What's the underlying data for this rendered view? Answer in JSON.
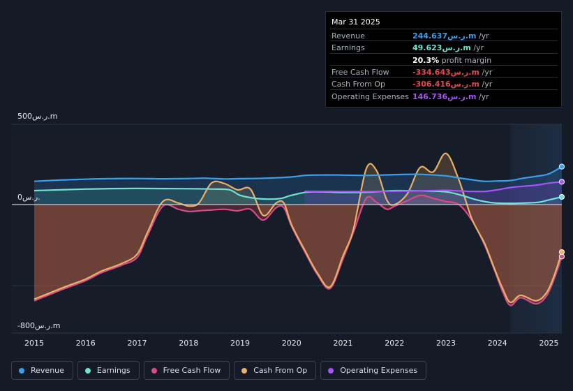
{
  "tooltip": {
    "date": "Mar 31 2025",
    "rows": [
      {
        "label": "Revenue",
        "value": "244.637ر.س.m",
        "unit": " /yr",
        "color": "#3b9ee8"
      },
      {
        "label": "Earnings",
        "value": "49.623ر.س.m",
        "unit": " /yr",
        "color": "#6fe3d0"
      },
      {
        "label": "",
        "value": "20.3%",
        "unit": " profit margin",
        "color": "#ffffff"
      },
      {
        "label": "Free Cash Flow",
        "value": "-334.643ر.س.m",
        "unit": " /yr",
        "color": "#e5484d"
      },
      {
        "label": "Cash From Op",
        "value": "-306.416ر.س.m",
        "unit": " /yr",
        "color": "#e5484d"
      },
      {
        "label": "Operating Expenses",
        "value": "146.736ر.س.m",
        "unit": " /yr",
        "color": "#a855f7"
      }
    ]
  },
  "axis": {
    "y_top": "500ر.س.m",
    "y_zero": "0ر.س.",
    "y_bottom": "-800ر.س.m"
  },
  "x_ticks": [
    "2015",
    "2016",
    "2017",
    "2018",
    "2019",
    "2020",
    "2021",
    "2022",
    "2023",
    "2024",
    "2025"
  ],
  "legend": [
    {
      "label": "Revenue",
      "color": "#3b9ee8"
    },
    {
      "label": "Earnings",
      "color": "#6fe3d0"
    },
    {
      "label": "Free Cash Flow",
      "color": "#d94a86"
    },
    {
      "label": "Cash From Op",
      "color": "#e8b06a"
    },
    {
      "label": "Operating Expenses",
      "color": "#a855f7"
    }
  ],
  "chart_data": {
    "type": "line",
    "ylim": [
      -800,
      500
    ],
    "xlim": [
      2014.6,
      2025.25
    ],
    "grid": true,
    "legend_position": "bottom",
    "series": [
      {
        "name": "Revenue",
        "color": "#3b9ee8",
        "x": [
          2015,
          2015.5,
          2016,
          2016.5,
          2017,
          2017.5,
          2018,
          2018.3,
          2018.7,
          2019,
          2019.5,
          2020,
          2020.3,
          2020.8,
          2021,
          2021.5,
          2022,
          2022.5,
          2023,
          2023.25,
          2023.5,
          2023.75,
          2024,
          2024.25,
          2024.5,
          2024.75,
          2025,
          2025.25
        ],
        "values": [
          150,
          158,
          164,
          167,
          168,
          166,
          168,
          170,
          165,
          167,
          170,
          178,
          189,
          191,
          190,
          188,
          193,
          195,
          185,
          172,
          160,
          150,
          152,
          155,
          170,
          182,
          198,
          244.637
        ]
      },
      {
        "name": "Earnings",
        "color": "#6fe3d0",
        "x": [
          2015,
          2015.5,
          2016,
          2016.5,
          2017,
          2017.5,
          2018,
          2018.5,
          2018.8,
          2019,
          2019.3,
          2019.6,
          2019.8,
          2020,
          2020.3,
          2020.6,
          2021,
          2021.5,
          2022,
          2022.5,
          2023,
          2023.3,
          2023.6,
          2023.9,
          2024.2,
          2024.5,
          2024.8,
          2025,
          2025.25
        ],
        "values": [
          90,
          95,
          100,
          103,
          104,
          103,
          102,
          100,
          95,
          60,
          40,
          35,
          40,
          60,
          80,
          82,
          78,
          80,
          90,
          88,
          82,
          60,
          30,
          12,
          8,
          10,
          15,
          30,
          49.623
        ]
      },
      {
        "name": "Free Cash Flow",
        "color": "#d94a86",
        "x": [
          2015,
          2015.3,
          2015.6,
          2016,
          2016.3,
          2016.7,
          2017,
          2017.2,
          2017.5,
          2017.8,
          2018,
          2018.2,
          2018.45,
          2018.7,
          2018.95,
          2019.2,
          2019.45,
          2019.7,
          2019.85,
          2020,
          2020.25,
          2020.5,
          2020.75,
          2021,
          2021.2,
          2021.45,
          2021.65,
          2021.85,
          2022,
          2022.25,
          2022.5,
          2022.75,
          2023,
          2023.25,
          2023.5,
          2023.75,
          2023.95,
          2024.1,
          2024.25,
          2024.45,
          2024.75,
          2024.95,
          2025.1,
          2025.25
        ],
        "values": [
          -620,
          -580,
          -540,
          -490,
          -440,
          -390,
          -340,
          -200,
          -10,
          -30,
          -45,
          -40,
          -35,
          -30,
          -40,
          -30,
          -100,
          -20,
          -20,
          -140,
          -300,
          -450,
          -540,
          -350,
          -180,
          40,
          15,
          -30,
          -10,
          25,
          60,
          40,
          20,
          0,
          -100,
          -260,
          -430,
          -560,
          -650,
          -600,
          -640,
          -590,
          -480,
          -334.643
        ]
      },
      {
        "name": "Cash From Op",
        "color": "#e8b06a",
        "x": [
          2015,
          2015.3,
          2015.6,
          2016,
          2016.3,
          2016.7,
          2017,
          2017.2,
          2017.5,
          2017.8,
          2018,
          2018.2,
          2018.45,
          2018.7,
          2018.95,
          2019.2,
          2019.45,
          2019.7,
          2019.85,
          2020,
          2020.25,
          2020.5,
          2020.75,
          2021,
          2021.2,
          2021.45,
          2021.65,
          2021.85,
          2022,
          2022.25,
          2022.5,
          2022.75,
          2023,
          2023.25,
          2023.5,
          2023.75,
          2023.95,
          2024.1,
          2024.25,
          2024.45,
          2024.75,
          2024.95,
          2025.1,
          2025.25
        ],
        "values": [
          -610,
          -570,
          -530,
          -480,
          -430,
          -380,
          -320,
          -180,
          20,
          10,
          -10,
          10,
          140,
          135,
          95,
          100,
          -70,
          10,
          10,
          -130,
          -290,
          -440,
          -530,
          -330,
          -160,
          230,
          220,
          30,
          0,
          70,
          240,
          210,
          330,
          160,
          -90,
          -250,
          -420,
          -540,
          -630,
          -585,
          -620,
          -570,
          -460,
          -306.416
        ]
      },
      {
        "name": "Operating Expenses",
        "color": "#a855f7",
        "x": [
          2020.25,
          2020.75,
          2021,
          2021.5,
          2022,
          2022.5,
          2023,
          2023.25,
          2023.5,
          2023.75,
          2024,
          2024.25,
          2024.5,
          2024.75,
          2025,
          2025.25
        ],
        "values": [
          85,
          85,
          84,
          84,
          86,
          88,
          92,
          88,
          85,
          85,
          95,
          110,
          118,
          125,
          138,
          146.736
        ]
      }
    ]
  }
}
